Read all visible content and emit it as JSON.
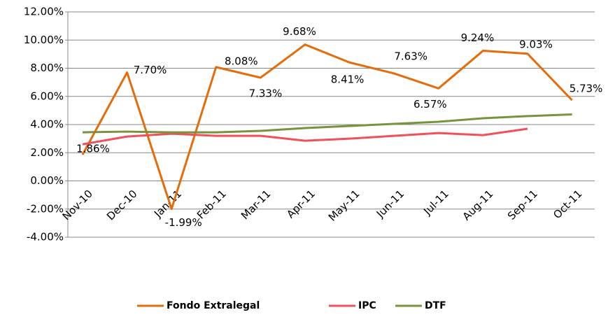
{
  "chart_data": {
    "type": "line",
    "categories": [
      "Nov-10",
      "Dec-10",
      "Jan-11",
      "Feb-11",
      "Mar-11",
      "Apr-11",
      "May-11",
      "Jun-11",
      "Jul-11",
      "Aug-11",
      "Sep-11",
      "Oct-11"
    ],
    "series": [
      {
        "name": "Fondo Extralegal",
        "color": "#e46c0a",
        "values": [
          1.86,
          7.7,
          -1.99,
          8.08,
          7.33,
          9.68,
          8.41,
          7.63,
          6.57,
          9.24,
          9.03,
          5.73
        ],
        "value_labels": [
          "1.86%",
          "7.70%",
          "-1.99%",
          "8.08%",
          "7.33%",
          "9.68%",
          "8.41%",
          "7.63%",
          "6.57%",
          "9.24%",
          "9.03%",
          "5.73%"
        ]
      },
      {
        "name": "IPC",
        "color": "#f0505a",
        "values": [
          2.6,
          3.15,
          3.35,
          3.2,
          3.2,
          2.85,
          3.0,
          3.2,
          3.4,
          3.25,
          3.7,
          null
        ]
      },
      {
        "name": "DTF",
        "color": "#77933c",
        "values": [
          3.45,
          3.5,
          3.45,
          3.45,
          3.55,
          3.75,
          3.9,
          4.05,
          4.2,
          4.45,
          4.6,
          4.72
        ]
      }
    ],
    "ylim": [
      -4,
      12
    ],
    "yticks": [
      {
        "value": -4,
        "label": "-4.00%"
      },
      {
        "value": -2,
        "label": "-2.00%"
      },
      {
        "value": 0,
        "label": "0.00%"
      },
      {
        "value": 2,
        "label": "2.00%"
      },
      {
        "value": 4,
        "label": "4.00%"
      },
      {
        "value": 6,
        "label": "6.00%"
      },
      {
        "value": 8,
        "label": "8.00%"
      },
      {
        "value": 10,
        "label": "10.00%"
      },
      {
        "value": 12,
        "label": "12.00%"
      }
    ],
    "grid": true,
    "legend": "bottom"
  }
}
